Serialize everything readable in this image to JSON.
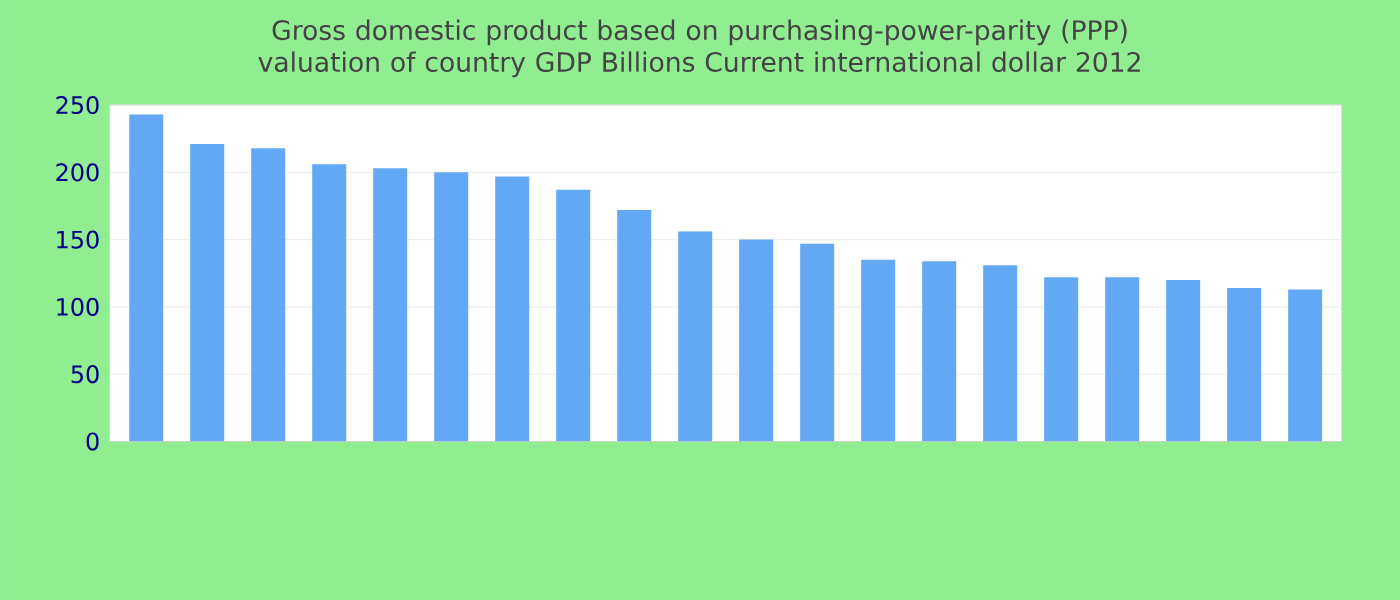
{
  "chart_data": {
    "type": "bar",
    "title": "Gross domestic product based on purchasing-power-parity (PPP) valuation of country GDP Billions Current international dollar 2012",
    "categories": [
      null,
      null,
      null,
      null,
      null,
      null,
      null,
      null,
      null,
      null,
      null,
      null,
      null,
      null,
      null,
      null,
      null,
      null,
      null,
      null
    ],
    "values": [
      243,
      221,
      218,
      206,
      203,
      200,
      197,
      187,
      172,
      156,
      150,
      147,
      135,
      134,
      131,
      122,
      122,
      120,
      114,
      113
    ],
    "color": "#62a8f4",
    "ylim": [
      0,
      250
    ],
    "yticks": [
      0,
      50,
      100,
      150,
      200,
      250
    ],
    "grid": "y"
  }
}
